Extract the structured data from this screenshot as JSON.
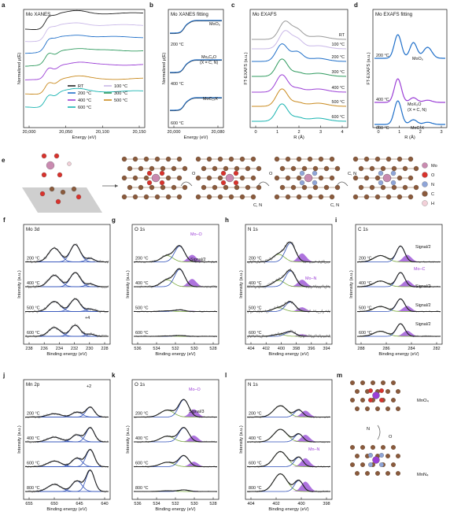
{
  "colors": {
    "black": "#222222",
    "gray": "#9a9a9a",
    "blue": "#1f6fc9",
    "lilac": "#c9b8e8",
    "green": "#2e9a5e",
    "purple": "#9b3fd6",
    "orange": "#c98a1e",
    "teal": "#17b3b0",
    "fit_blue": "#2e4fb8",
    "fit_green": "#7aab3c",
    "fill_purple": "#a05ad8",
    "atom_mo": "#c98ab0",
    "atom_o": "#d8322c",
    "atom_n": "#8fa5d8",
    "atom_c": "#8a5a3c",
    "atom_h": "#f2d0d8"
  },
  "panels": {
    "a": {
      "letter": "a",
      "title": "Mo XANES",
      "xlabel": "Energy (eV)",
      "ylabel": "Normalized μ(E)",
      "ticks": [
        "20,000",
        "20,050",
        "20,100",
        "20,150"
      ],
      "legend": [
        "RT",
        "100 °C",
        "200 °C",
        "300 °C",
        "400 °C",
        "500 °C",
        "600 °C"
      ]
    },
    "b": {
      "letter": "b",
      "title": "Mo XANES fitting",
      "xlabel": "Energy (eV)",
      "ylabel": "Normalized μ(E)",
      "ticks": [
        "20,000",
        "20,080"
      ],
      "labels": [
        "MoO₆",
        "MoₓCᵧO",
        "(X = C, N)",
        "MoC₂ₓX",
        "200 °C",
        "400 °C",
        "600 °C"
      ]
    },
    "c": {
      "letter": "c",
      "title": "Mo EXAFS",
      "xlabel": "R (Å)",
      "ylabel": "FT-EXAFS (a.u.)",
      "ticks": [
        "0",
        "1",
        "2",
        "3",
        "4"
      ],
      "temps": [
        "RT",
        "100 °C",
        "200 °C",
        "300 °C",
        "400 °C",
        "500 °C",
        "600 °C"
      ]
    },
    "d": {
      "letter": "d",
      "title": "Mo EXAFS fitting",
      "xlabel": "R (Å)",
      "ylabel": "FT-EXAFS (a.u.)",
      "ticks": [
        "0",
        "1",
        "2",
        "3"
      ],
      "labels": [
        "200 °C",
        "MoO₆",
        "400 °C",
        "MoX₅O",
        "(X = C, N)",
        "600 °C",
        "MoC₂X"
      ]
    },
    "e": {
      "letter": "e",
      "legend": [
        "Mo",
        "O",
        "N",
        "C",
        "H"
      ],
      "arrow_labels": [
        "O",
        "O",
        "C, N",
        "C, N"
      ]
    },
    "f": {
      "letter": "f",
      "title": "Mo 3d",
      "xlabel": "Binding energy (eV)",
      "ylabel": "Intensity (a.u.)",
      "ticks": [
        "238",
        "236",
        "234",
        "232",
        "230",
        "228"
      ],
      "temps": [
        "200 °C",
        "400 °C",
        "500 °C",
        "600 °C"
      ],
      "extra": [
        "+4"
      ]
    },
    "g": {
      "letter": "g",
      "title": "O 1s",
      "xlabel": "Binding energy (eV)",
      "ylabel": "Intensity (a.u.)",
      "ticks": [
        "536",
        "534",
        "532",
        "530",
        "528"
      ],
      "temps": [
        "200 °C",
        "400 °C",
        "500 °C",
        "600 °C"
      ],
      "extra": [
        "Mo–O",
        "Signal/2"
      ]
    },
    "h": {
      "letter": "h",
      "title": "N 1s",
      "xlabel": "Binding energy (eV)",
      "ylabel": "Intensity (a.u.)",
      "ticks": [
        "404",
        "402",
        "400",
        "398",
        "396",
        "394"
      ],
      "temps": [
        "200 °C",
        "400 °C",
        "500 °C",
        "600 °C"
      ],
      "extra": [
        "Mo–N"
      ]
    },
    "i": {
      "letter": "i",
      "title": "C 1s",
      "xlabel": "Binding energy (eV)",
      "ylabel": "Intensity (a.u.)",
      "ticks": [
        "288",
        "286",
        "284",
        "282"
      ],
      "temps": [
        "200 °C",
        "400 °C",
        "500 °C",
        "600 °C"
      ],
      "extra": [
        "Signal/2",
        "Mo–C",
        "Signal/2",
        "Signal/2",
        "Signal/2"
      ]
    },
    "j": {
      "letter": "j",
      "title": "Mn 2p",
      "xlabel": "Binding energy (eV)",
      "ylabel": "Intensity (a.u.)",
      "ticks": [
        "655",
        "650",
        "645",
        "640"
      ],
      "temps": [
        "200 °C",
        "400 °C",
        "600 °C",
        "800 °C"
      ],
      "extra": [
        "+2"
      ]
    },
    "k": {
      "letter": "k",
      "title": "O 1s",
      "xlabel": "Binding energy (eV)",
      "ylabel": "Intensity (a.u.)",
      "ticks": [
        "536",
        "534",
        "532",
        "530",
        "528"
      ],
      "temps": [
        "200 °C",
        "400 °C",
        "600 °C",
        "800 °C"
      ],
      "extra": [
        "Mo–O",
        "Signal/3"
      ]
    },
    "l": {
      "letter": "l",
      "title": "N 1s",
      "xlabel": "Binding energy (eV)",
      "ylabel": "Intensity (a.u.)",
      "ticks": [
        "404",
        "402",
        "400",
        "398"
      ],
      "temps": [
        "200 °C",
        "400 °C",
        "600 °C",
        "800 °C"
      ],
      "extra": [
        "Mn–N"
      ]
    },
    "m": {
      "letter": "m",
      "labels": [
        "MnO₄",
        "N",
        "O",
        "MnN₄"
      ]
    }
  },
  "chart_data": [
    {
      "panel": "a",
      "type": "line",
      "title": "Mo XANES",
      "xlabel": "Energy (eV)",
      "ylabel": "Normalized μ(E)",
      "xlim": [
        19980,
        20160
      ],
      "series": [
        {
          "name": "RT"
        },
        {
          "name": "100 °C"
        },
        {
          "name": "200 °C"
        },
        {
          "name": "300 °C"
        },
        {
          "name": "400 °C"
        },
        {
          "name": "500 °C"
        },
        {
          "name": "600 °C"
        }
      ]
    },
    {
      "panel": "b",
      "type": "line",
      "title": "Mo XANES fitting",
      "xlabel": "Energy (eV)",
      "ylabel": "Normalized μ(E)",
      "xlim": [
        19990,
        20095
      ]
    },
    {
      "panel": "c",
      "type": "line",
      "title": "Mo EXAFS",
      "xlabel": "R (Å)",
      "ylabel": "FT-EXAFS (a.u.)",
      "xlim": [
        0,
        4
      ]
    },
    {
      "panel": "d",
      "type": "line",
      "title": "Mo EXAFS fitting",
      "xlabel": "R (Å)",
      "ylabel": "FT-EXAFS (a.u.)",
      "xlim": [
        0,
        3.5
      ]
    },
    {
      "panel": "f",
      "type": "line",
      "title": "Mo 3d",
      "xlabel": "Binding energy (eV)",
      "xlim": [
        238,
        227
      ],
      "peaks_eV": [
        235,
        232,
        229.5
      ]
    },
    {
      "panel": "g",
      "type": "line",
      "title": "O 1s",
      "xlabel": "Binding energy (eV)",
      "xlim": [
        536,
        528
      ],
      "peaks_eV": [
        532.5,
        531.5,
        530.5
      ]
    },
    {
      "panel": "h",
      "type": "line",
      "title": "N 1s",
      "xlabel": "Binding energy (eV)",
      "xlim": [
        404,
        393
      ],
      "peaks_eV": [
        400,
        398.4,
        397.5
      ]
    },
    {
      "panel": "i",
      "type": "line",
      "title": "C 1s",
      "xlabel": "Binding energy (eV)",
      "xlim": [
        289,
        281
      ],
      "peaks_eV": [
        286,
        284.6,
        283.8
      ]
    },
    {
      "panel": "j",
      "type": "line",
      "title": "Mn 2p",
      "xlabel": "Binding energy (eV)",
      "xlim": [
        657,
        637
      ],
      "peaks_eV": [
        653,
        645,
        641.5,
        640.5
      ]
    },
    {
      "panel": "k",
      "type": "line",
      "title": "O 1s",
      "xlabel": "Binding energy (eV)",
      "xlim": [
        536,
        528
      ],
      "peaks_eV": [
        533.3,
        531.8,
        530.2
      ]
    },
    {
      "panel": "l",
      "type": "line",
      "title": "N 1s",
      "xlabel": "Binding energy (eV)",
      "xlim": [
        405,
        396
      ],
      "peaks_eV": [
        400.5,
        399.8,
        398.2
      ]
    }
  ]
}
